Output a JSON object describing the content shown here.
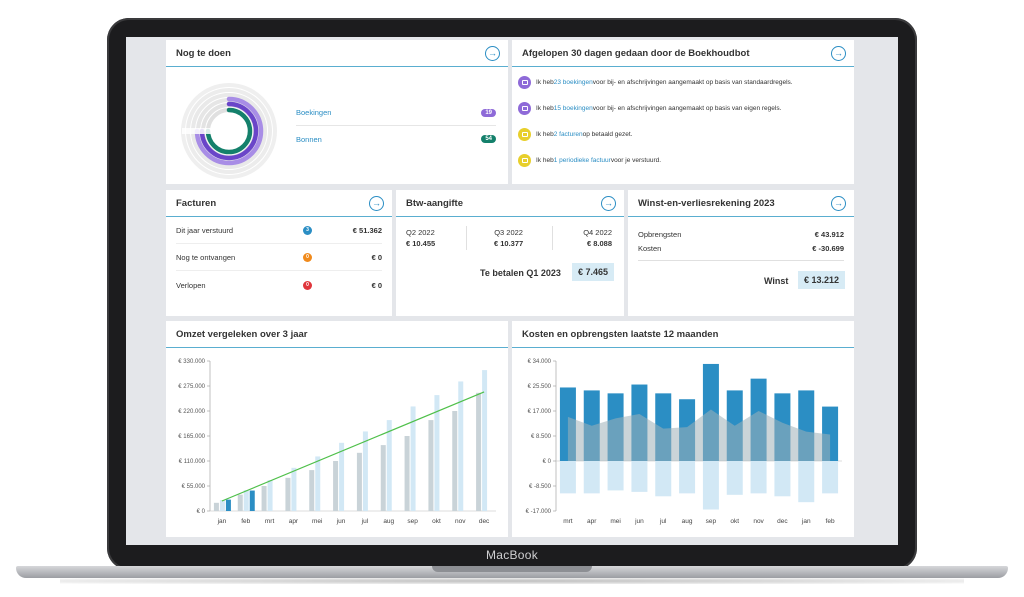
{
  "device": {
    "label": "MacBook"
  },
  "todo": {
    "title": "Nog te doen",
    "items": [
      {
        "label": "Boekingen",
        "count": "19",
        "color": "#8e6ad8"
      },
      {
        "label": "Bonnen",
        "count": "54",
        "color": "#14806b"
      }
    ]
  },
  "bot": {
    "title": "Afgelopen 30 dagen gedaan door de Boekhoudbot",
    "items": [
      {
        "pre": "Ik heb ",
        "link": "23 boekingen",
        "post": " voor bij- en afschrijvingen aangemaakt op basis van standaardregels.",
        "icon_color": "#8e6ad8",
        "icon": "document-icon"
      },
      {
        "pre": "Ik heb ",
        "link": "15 boekingen",
        "post": " voor bij- en afschrijvingen aangemaakt op basis van eigen regels.",
        "icon_color": "#8e6ad8",
        "icon": "document-icon"
      },
      {
        "pre": "Ik heb ",
        "link": "2 facturen",
        "post": " op betaald gezet.",
        "icon_color": "#e8cf2c",
        "icon": "invoice-icon"
      },
      {
        "pre": "Ik heb ",
        "link": "1 periodieke factuur",
        "post": " voor je verstuurd.",
        "icon_color": "#e8cf2c",
        "icon": "invoice-icon"
      }
    ]
  },
  "facturen": {
    "title": "Facturen",
    "rows": [
      {
        "label": "Dit jaar verstuurd",
        "count": "3",
        "color": "#2b8ec4",
        "amount": "€ 51.362"
      },
      {
        "label": "Nog te ontvangen",
        "count": "0",
        "color": "#f08a1c",
        "amount": "€ 0"
      },
      {
        "label": "Verlopen",
        "count": "0",
        "color": "#e0363c",
        "amount": "€ 0"
      }
    ]
  },
  "btw": {
    "title": "Btw-aangifte",
    "quarters": [
      {
        "label": "Q2 2022",
        "amount": "€ 10.455"
      },
      {
        "label": "Q3 2022",
        "amount": "€ 10.377"
      },
      {
        "label": "Q4 2022",
        "amount": "€ 8.088"
      }
    ],
    "pay_label": "Te betalen Q1 2023",
    "pay_amount": "€ 7.465"
  },
  "wv": {
    "title": "Winst-en-verliesrekening 2023",
    "opbrengsten_label": "Opbrengsten",
    "opbrengsten": "€ 43.912",
    "kosten_label": "Kosten",
    "kosten": "€ -30.699",
    "winst_label": "Winst",
    "winst": "€ 13.212"
  },
  "omzet": {
    "title": "Omzet vergeleken over 3 jaar"
  },
  "kosten": {
    "title": "Kosten en opbrengsten laatste 12 maanden"
  },
  "chart_data": [
    {
      "type": "bar",
      "title": "Omzet vergeleken over 3 jaar",
      "categories": [
        "jan",
        "feb",
        "mrt",
        "apr",
        "mei",
        "jun",
        "jul",
        "aug",
        "sep",
        "okt",
        "nov",
        "dec"
      ],
      "yticks": [
        "€ 330.000",
        "€ 275.000",
        "€ 220.000",
        "€ 165.000",
        "€ 110.000",
        "€ 55.000",
        "€ 0"
      ],
      "ylim": [
        0,
        330000
      ],
      "series": [
        {
          "values": [
            18000,
            36000,
            55000,
            73000,
            90000,
            110000,
            128000,
            145000,
            165000,
            200000,
            220000,
            260000
          ],
          "color": "#c9d3d8"
        },
        {
          "values": [
            24000,
            46000,
            68000,
            95000,
            120000,
            150000,
            175000,
            200000,
            230000,
            255000,
            285000,
            310000
          ],
          "color": "#d2e8f5"
        },
        {
          "values": [
            25000,
            45000,
            null,
            null,
            null,
            null,
            null,
            null,
            null,
            null,
            null,
            null
          ],
          "color": "#2b8ec4"
        }
      ],
      "trend": {
        "from": 22000,
        "to": 262000,
        "color": "#4fc04a"
      }
    },
    {
      "type": "bar",
      "title": "Kosten en opbrengsten laatste 12 maanden",
      "categories": [
        "mrt",
        "apr",
        "mei",
        "jun",
        "jul",
        "aug",
        "sep",
        "okt",
        "nov",
        "dec",
        "jan",
        "feb"
      ],
      "yticks": [
        "€ 34.000",
        "€ 25.500",
        "€ 17.000",
        "€ 8.500",
        "€ 0",
        "€ -8.500",
        "€ -17.000"
      ],
      "ylim": [
        -17000,
        34000
      ],
      "series": [
        {
          "values": [
            25000,
            24000,
            23000,
            26000,
            23000,
            21000,
            33000,
            24000,
            28000,
            23000,
            24000,
            18500
          ],
          "color": "#2b8ec4"
        },
        {
          "values": [
            -11000,
            -11000,
            -10000,
            -10500,
            -12000,
            -11000,
            -16500,
            -11500,
            -11000,
            -12000,
            -14000,
            -11000
          ],
          "color": "#d2e8f5"
        }
      ],
      "area": {
        "values": [
          15000,
          12000,
          14500,
          16000,
          11000,
          11500,
          17500,
          12000,
          17000,
          13000,
          10000,
          9000
        ],
        "color": "#9fb0b8"
      }
    }
  ]
}
